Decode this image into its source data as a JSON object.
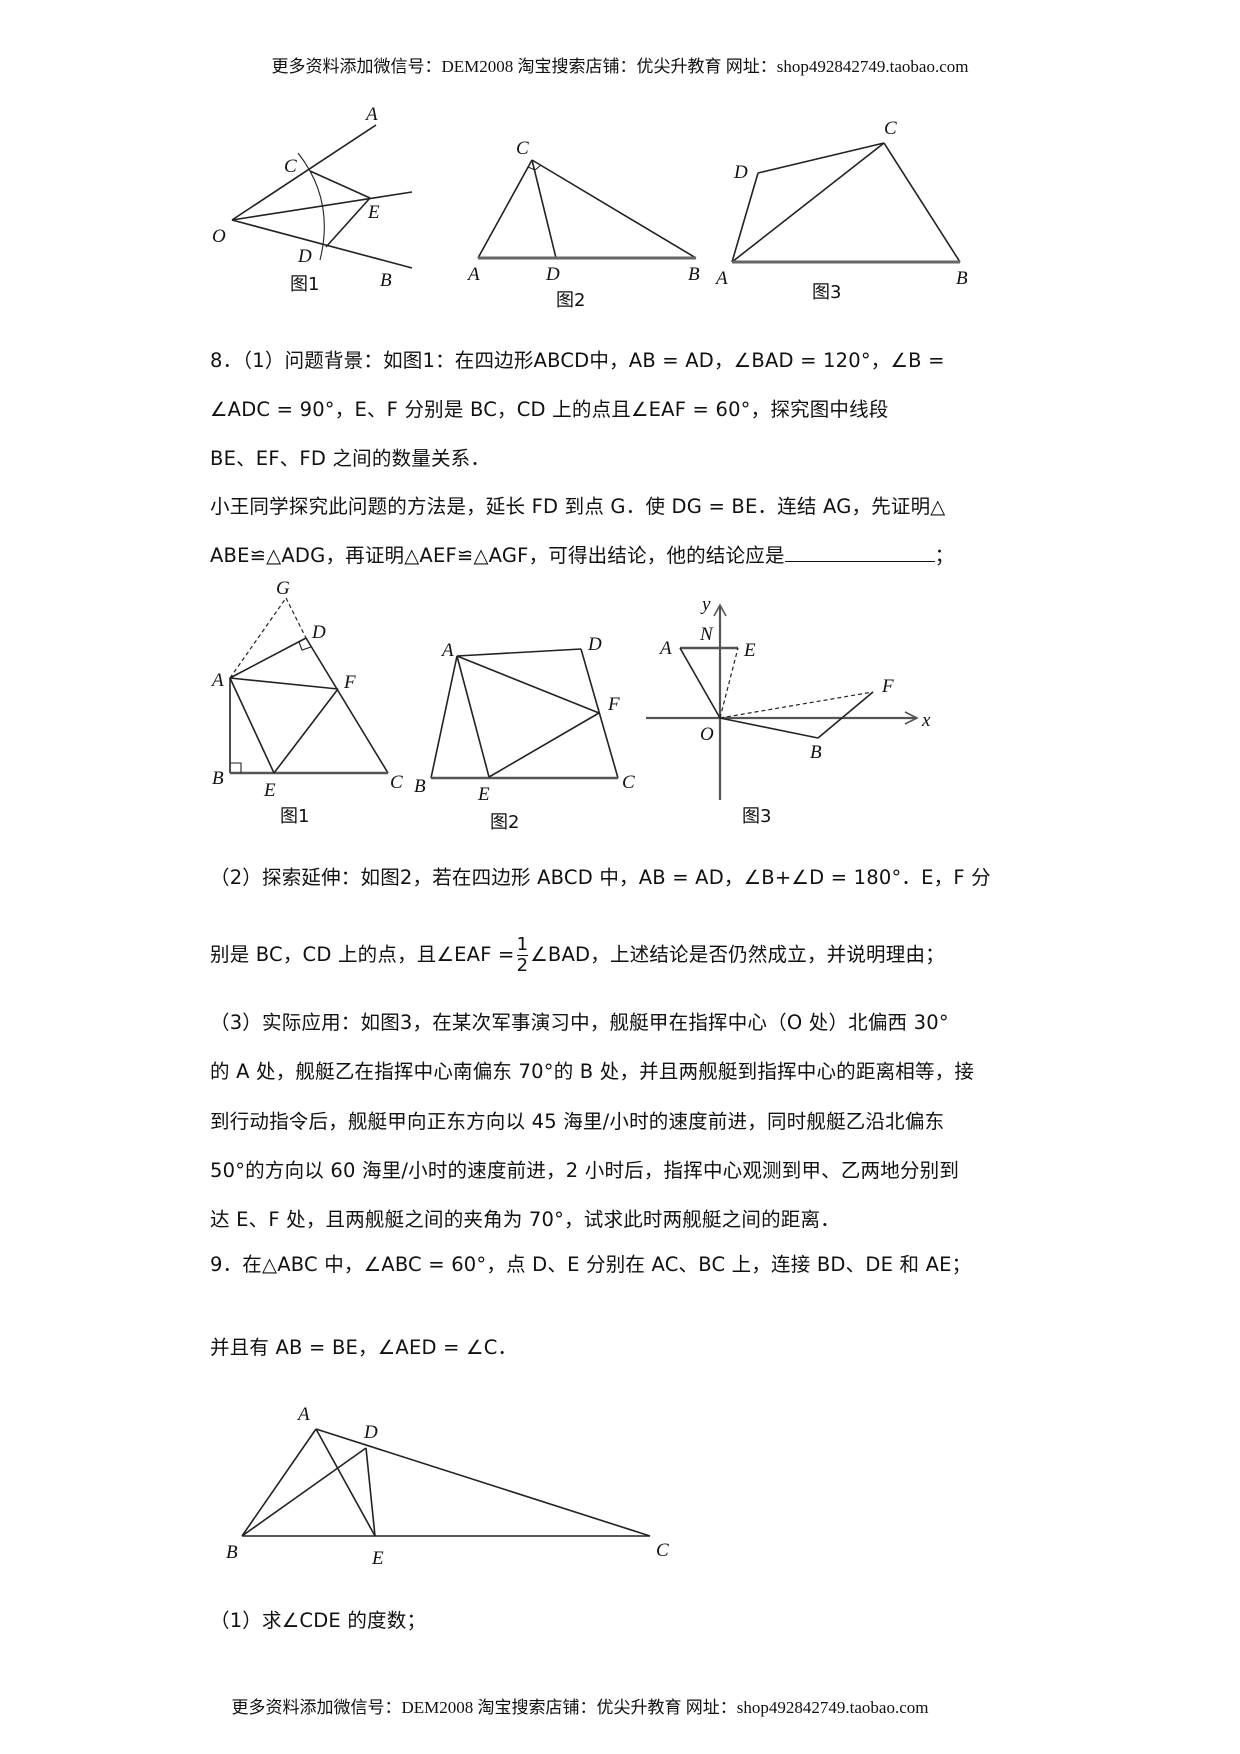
{
  "header": "更多资料添加微信号：DEM2008 淘宝搜索店铺：优尖升教育 网址：shop492842749.taobao.com",
  "footer": "更多资料添加微信号：DEM2008 淘宝搜索店铺：优尖升教育 网址：shop492842749.taobao.com",
  "top_figures": {
    "fig1": {
      "caption": "图1",
      "labels": {
        "A": "A",
        "B": "B",
        "C": "C",
        "D": "D",
        "E": "E",
        "O": "O"
      }
    },
    "fig2": {
      "caption": "图2",
      "labels": {
        "A": "A",
        "B": "B",
        "C": "C",
        "D": "D"
      }
    },
    "fig3": {
      "caption": "图3",
      "labels": {
        "A": "A",
        "B": "B",
        "C": "C",
        "D": "D"
      }
    }
  },
  "q8": {
    "lines": [
      "8．（1）问题背景：如图1：在四边形ABCD中，AB = AD，∠BAD = 120°，∠B =",
      "∠ADC = 90°，E、F 分别是 BC，CD 上的点且∠EAF = 60°，探究图中线段",
      "BE、EF、FD 之间的数量关系．",
      "小王同学探究此问题的方法是，延长 FD 到点 G．使 DG = BE．连结 AG，先证明△",
      "ABE≌△ADG，再证明△AEF≌△AGF，可得出结论，他的结论应是",
      "；"
    ],
    "figures": {
      "fig1": {
        "caption": "图1",
        "labels": {
          "G": "G",
          "D": "D",
          "A": "A",
          "F": "F",
          "B": "B",
          "E": "E",
          "C": "C"
        }
      },
      "fig2": {
        "caption": "图2",
        "labels": {
          "A": "A",
          "D": "D",
          "F": "F",
          "B": "B",
          "E": "E",
          "C": "C"
        }
      },
      "fig3": {
        "caption": "图3",
        "labels": {
          "y": "y",
          "N": "N",
          "A": "A",
          "E": "E",
          "F": "F",
          "x": "x",
          "O": "O",
          "B": "B"
        }
      }
    },
    "part2": {
      "line1": "（2）探索延伸：如图2，若在四边形 ABCD 中，AB = AD，∠B+∠D = 180°．E，F 分",
      "line2_before": "别是 BC，CD 上的点，且∠EAF =",
      "frac_num": "1",
      "frac_den": "2",
      "line2_after": "∠BAD，上述结论是否仍然成立，并说明理由；"
    },
    "part3": [
      "（3）实际应用：如图3，在某次军事演习中，舰艇甲在指挥中心（O 处）北偏西 30°",
      "的 A 处，舰艇乙在指挥中心南偏东 70°的 B 处，并且两舰艇到指挥中心的距离相等，接",
      "到行动指令后，舰艇甲向正东方向以 45 海里/小时的速度前进，同时舰艇乙沿北偏东",
      "50°的方向以 60 海里/小时的速度前进，2 小时后，指挥中心观测到甲、乙两地分别到",
      "达 E、F 处，且两舰艇之间的夹角为 70°，试求此时两舰艇之间的距离．"
    ]
  },
  "q9": {
    "line1": "9．在△ABC 中，∠ABC = 60°，点 D、E 分别在 AC、BC 上，连接 BD、DE 和 AE；",
    "line2": "并且有 AB = BE，∠AED = ∠C．",
    "figure": {
      "labels": {
        "A": "A",
        "D": "D",
        "B": "B",
        "E": "E",
        "C": "C"
      }
    },
    "sub1": "（1）求∠CDE 的度数；"
  }
}
